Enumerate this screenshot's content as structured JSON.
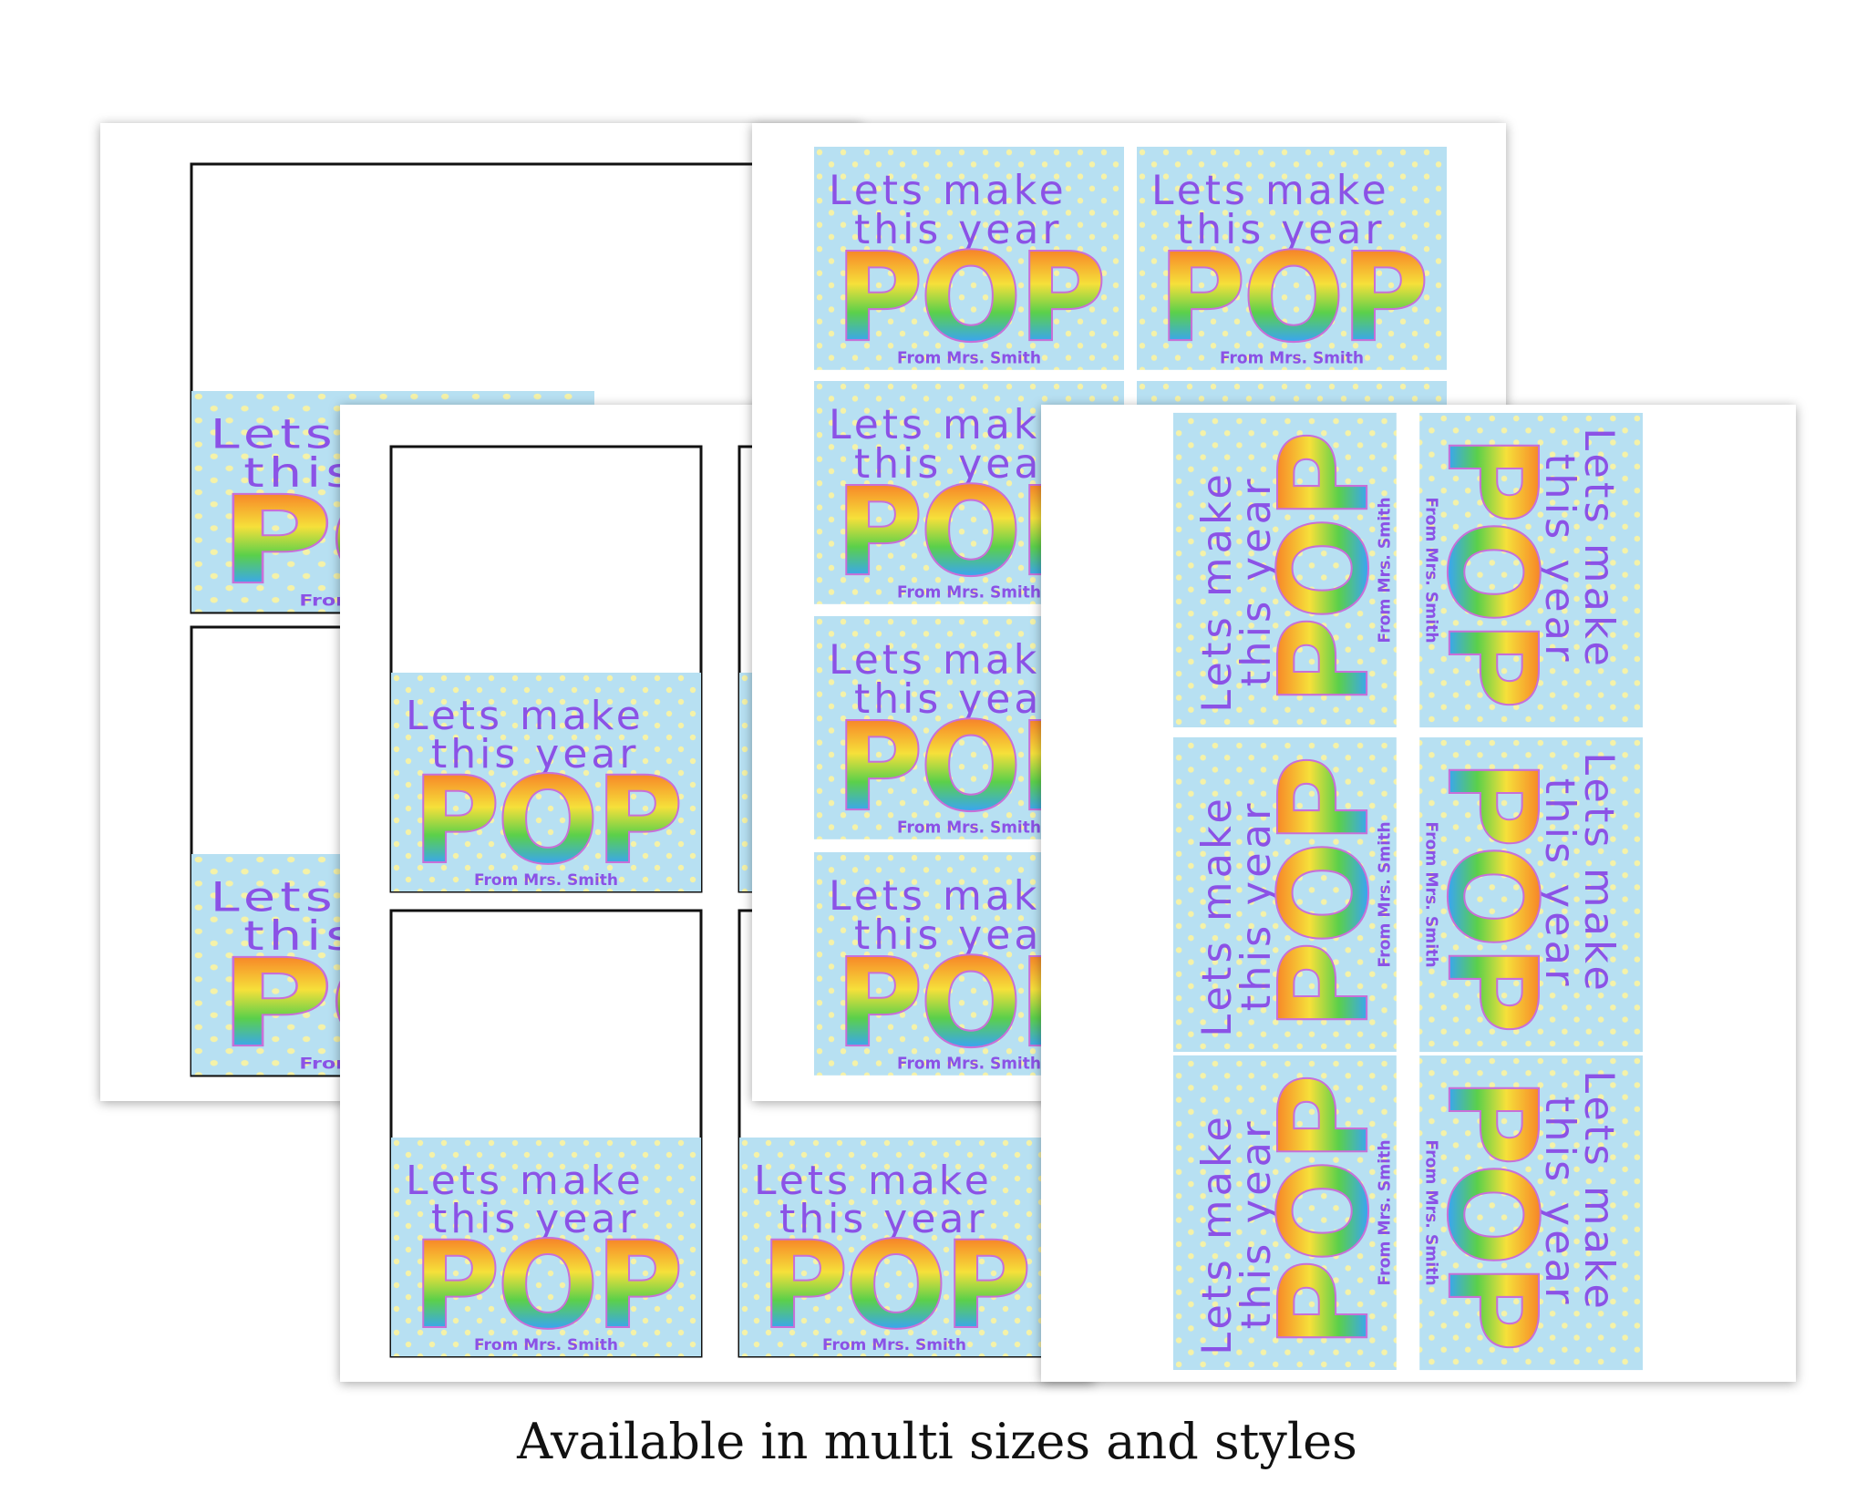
{
  "card": {
    "line1": "Lets make",
    "line2": "this year",
    "word": "POP",
    "from": "From Mrs. Smith"
  },
  "caption": "Available in multi sizes and styles"
}
